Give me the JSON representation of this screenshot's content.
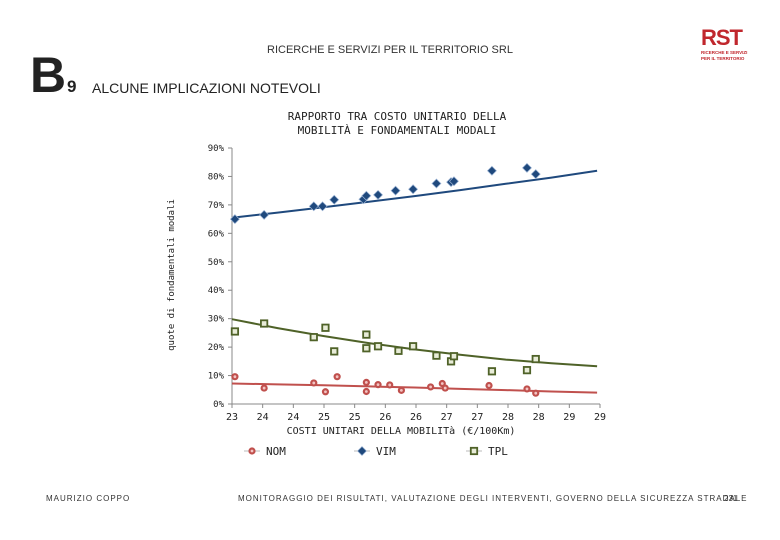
{
  "header": {
    "organization": "RICERCHE E SERVIZI PER IL TERRITORIO SRL",
    "section_letter": "B",
    "section_number": "9",
    "section_title": "ALCUNE IMPLICAZIONI NOTEVOLI",
    "logo_main": "RST",
    "logo_line1": "RICERCHE E SERVIZI",
    "logo_line2": "PER IL TERRITORIO"
  },
  "footer": {
    "author": "MAURIZIO COPPO",
    "title": "MONITORAGGIO DEI RISULTATI, VALUTAZIONE DEGLI INTERVENTI, GOVERNO DELLA SICUREZZA STRADALE",
    "page": "231"
  },
  "colors": {
    "NOM": "#c0504d",
    "VIM": "#1f497d",
    "TPL": "#4f6228"
  },
  "chart_data": {
    "type": "scatter",
    "title": "RAPPORTO TRA COSTO UNITARIO DELLA\nMOBILITÀ E FONDAMENTALI MODALI",
    "xlabel": "COSTI UNITARI DELLA MOBILITà (€/100Km)",
    "ylabel": "quote di fondamentali modali",
    "xlim": [
      23.0,
      29.3
    ],
    "ylim": [
      0,
      90
    ],
    "x_tick_labels": [
      "23",
      "24",
      "24",
      "25",
      "25",
      "26",
      "26",
      "27",
      "27",
      "28",
      "28",
      "29",
      "29"
    ],
    "y_tick_labels": [
      "90%",
      "80%",
      "70%",
      "60%",
      "50%",
      "40%",
      "30%",
      "20%",
      "10%",
      "0%"
    ],
    "legend": [
      "NOM",
      "VIM",
      "TPL"
    ],
    "legend_position": "bottom",
    "series": [
      {
        "name": "NOM",
        "marker": "circle",
        "points": [
          [
            23.05,
            9.6
          ],
          [
            23.55,
            5.6
          ],
          [
            24.4,
            7.4
          ],
          [
            24.6,
            4.3
          ],
          [
            24.8,
            9.6
          ],
          [
            25.3,
            7.6
          ],
          [
            25.3,
            4.4
          ],
          [
            25.5,
            6.8
          ],
          [
            25.7,
            6.7
          ],
          [
            25.9,
            4.8
          ],
          [
            26.4,
            6.0
          ],
          [
            26.6,
            7.2
          ],
          [
            26.65,
            5.6
          ],
          [
            27.4,
            6.5
          ],
          [
            28.05,
            5.3
          ],
          [
            28.2,
            3.8
          ]
        ],
        "trend": [
          7.2,
          6.9,
          6.6,
          6.2,
          5.8,
          5.3,
          4.9,
          4.4,
          4.0
        ]
      },
      {
        "name": "VIM",
        "marker": "diamond",
        "points": [
          [
            23.05,
            65.0
          ],
          [
            23.55,
            66.5
          ],
          [
            24.4,
            69.5
          ],
          [
            24.55,
            69.5
          ],
          [
            24.75,
            71.8
          ],
          [
            25.25,
            72.0
          ],
          [
            25.3,
            73.2
          ],
          [
            25.5,
            73.5
          ],
          [
            25.8,
            75.0
          ],
          [
            26.1,
            75.5
          ],
          [
            26.5,
            77.5
          ],
          [
            26.75,
            78.0
          ],
          [
            26.8,
            78.3
          ],
          [
            27.45,
            82.0
          ],
          [
            28.05,
            83.0
          ],
          [
            28.2,
            80.8
          ]
        ],
        "trend": [
          65.5,
          67.3,
          69.2,
          71.1,
          73.1,
          75.2,
          77.4,
          79.6,
          82.0
        ]
      },
      {
        "name": "TPL",
        "marker": "square",
        "points": [
          [
            23.05,
            25.5
          ],
          [
            23.55,
            28.3
          ],
          [
            24.4,
            23.5
          ],
          [
            24.6,
            26.8
          ],
          [
            24.75,
            18.5
          ],
          [
            25.3,
            24.4
          ],
          [
            25.3,
            19.6
          ],
          [
            25.5,
            20.3
          ],
          [
            25.85,
            18.7
          ],
          [
            26.1,
            20.3
          ],
          [
            26.5,
            17.0
          ],
          [
            26.75,
            15.0
          ],
          [
            26.8,
            16.8
          ],
          [
            27.45,
            11.5
          ],
          [
            28.05,
            11.9
          ],
          [
            28.2,
            15.8
          ]
        ],
        "trend": [
          29.8,
          26.7,
          23.9,
          21.4,
          19.2,
          17.3,
          15.6,
          14.3,
          13.3
        ]
      }
    ]
  }
}
